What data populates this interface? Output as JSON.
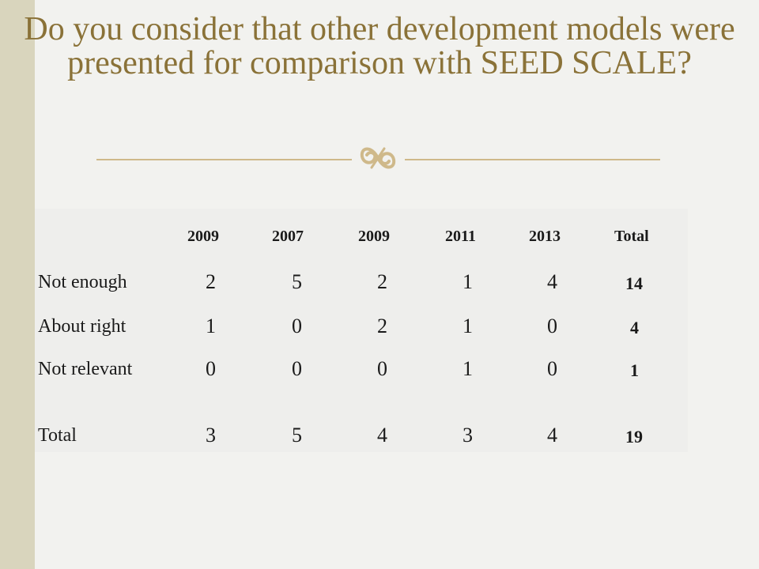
{
  "title": "Do you consider that other development models were presented for comparison with SEED SCALE?",
  "table": {
    "headers": [
      "",
      "2009",
      "2007",
      "2009",
      "2011",
      "2013",
      "Total"
    ],
    "rows": [
      {
        "label": "Not enough",
        "values": [
          "2",
          "5",
          "2",
          "1",
          "4"
        ],
        "total": "14"
      },
      {
        "label": "About right",
        "values": [
          "1",
          "0",
          "2",
          "1",
          "0"
        ],
        "total": "4"
      },
      {
        "label": "Not relevant",
        "values": [
          "0",
          "0",
          "0",
          "1",
          "0"
        ],
        "total": "1"
      },
      {
        "label": "Total",
        "values": [
          "3",
          "5",
          "4",
          "3",
          "4"
        ],
        "total": "19"
      }
    ]
  },
  "colors": {
    "title": "#8a7238",
    "accent_rule": "#cfb98a",
    "side_band": "#d9d5bd",
    "background": "#f2f2ef"
  },
  "icons": {
    "ornament": "decorative-flourish-icon"
  }
}
